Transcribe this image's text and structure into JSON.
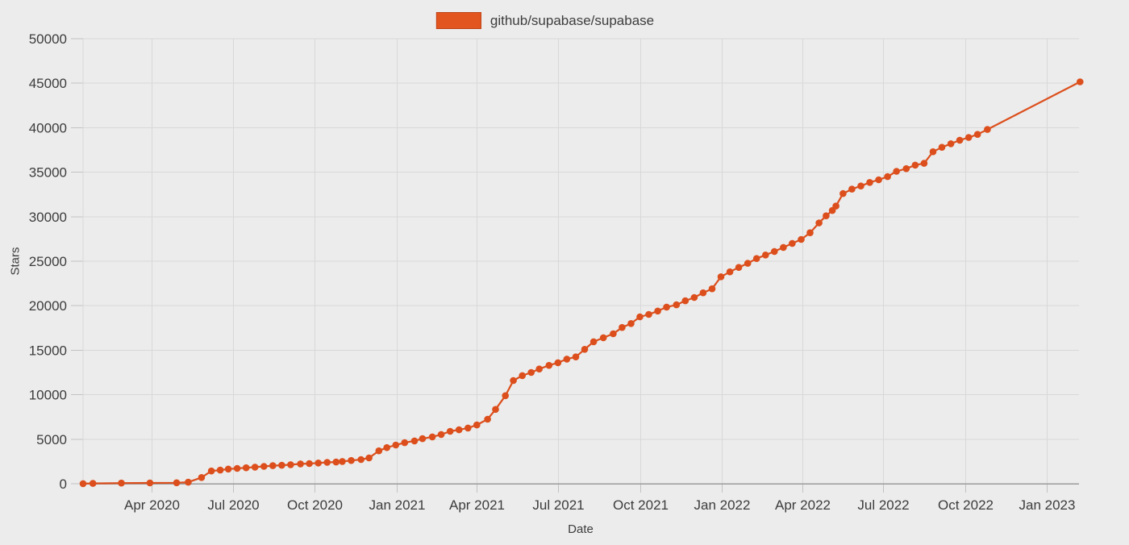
{
  "figure": {
    "background_color": "#ececec",
    "grid_color": "#d8d8d8",
    "tick_mark_color": "#c2c2c2",
    "zero_axis_color": "#9b9b9b",
    "tick_text_color": "#3c3c3c"
  },
  "chart_data": {
    "type": "line",
    "title": "",
    "xlabel": "Date",
    "ylabel": "Stars",
    "ylim": [
      0,
      50000
    ],
    "ytick_step": 5000,
    "ytick_labels": [
      "0",
      "5000",
      "10000",
      "15000",
      "20000",
      "25000",
      "30000",
      "35000",
      "40000",
      "45000",
      "50000"
    ],
    "x_start": "2020-01-15",
    "x_end": "2023-02-07",
    "grid": true,
    "legend_position": "top-center",
    "markers": true,
    "xticks": [
      {
        "label": "Apr 2020",
        "date": "2020-04-01"
      },
      {
        "label": "Jul 2020",
        "date": "2020-07-01"
      },
      {
        "label": "Oct 2020",
        "date": "2020-10-01"
      },
      {
        "label": "Jan 2021",
        "date": "2021-01-01"
      },
      {
        "label": "Apr 2021",
        "date": "2021-04-01"
      },
      {
        "label": "Jul 2021",
        "date": "2021-07-01"
      },
      {
        "label": "Oct 2021",
        "date": "2021-10-01"
      },
      {
        "label": "Jan 2022",
        "date": "2022-01-01"
      },
      {
        "label": "Apr 2022",
        "date": "2022-04-01"
      },
      {
        "label": "Jul 2022",
        "date": "2022-07-01"
      },
      {
        "label": "Oct 2022",
        "date": "2022-10-01"
      },
      {
        "label": "Jan 2023",
        "date": "2023-01-01"
      }
    ],
    "series": [
      {
        "name": "github/supabase/supabase",
        "color": "#dc4f1d",
        "legend_swatch_color": "#e2551e",
        "legend_swatch_border": "#bf4318",
        "points": [
          [
            "2020-01-15",
            10
          ],
          [
            "2020-01-26",
            40
          ],
          [
            "2020-02-27",
            70
          ],
          [
            "2020-03-30",
            90
          ],
          [
            "2020-04-29",
            110
          ],
          [
            "2020-05-12",
            170
          ],
          [
            "2020-05-27",
            700
          ],
          [
            "2020-06-07",
            1430
          ],
          [
            "2020-06-17",
            1530
          ],
          [
            "2020-06-26",
            1650
          ],
          [
            "2020-07-06",
            1720
          ],
          [
            "2020-07-16",
            1790
          ],
          [
            "2020-07-26",
            1870
          ],
          [
            "2020-08-05",
            1950
          ],
          [
            "2020-08-15",
            2030
          ],
          [
            "2020-08-25",
            2070
          ],
          [
            "2020-09-04",
            2140
          ],
          [
            "2020-09-15",
            2230
          ],
          [
            "2020-09-25",
            2260
          ],
          [
            "2020-10-05",
            2330
          ],
          [
            "2020-10-15",
            2400
          ],
          [
            "2020-10-25",
            2440
          ],
          [
            "2020-11-01",
            2500
          ],
          [
            "2020-11-11",
            2610
          ],
          [
            "2020-11-22",
            2720
          ],
          [
            "2020-12-01",
            2900
          ],
          [
            "2020-12-12",
            3700
          ],
          [
            "2020-12-21",
            4060
          ],
          [
            "2020-12-31",
            4350
          ],
          [
            "2021-01-10",
            4610
          ],
          [
            "2021-01-21",
            4810
          ],
          [
            "2021-01-30",
            5060
          ],
          [
            "2021-02-10",
            5260
          ],
          [
            "2021-02-20",
            5530
          ],
          [
            "2021-03-02",
            5890
          ],
          [
            "2021-03-12",
            6060
          ],
          [
            "2021-03-22",
            6260
          ],
          [
            "2021-04-01",
            6600
          ],
          [
            "2021-04-13",
            7250
          ],
          [
            "2021-04-22",
            8350
          ],
          [
            "2021-05-03",
            9890
          ],
          [
            "2021-05-12",
            11590
          ],
          [
            "2021-05-22",
            12150
          ],
          [
            "2021-06-01",
            12500
          ],
          [
            "2021-06-10",
            12890
          ],
          [
            "2021-06-21",
            13300
          ],
          [
            "2021-07-01",
            13600
          ],
          [
            "2021-07-11",
            14000
          ],
          [
            "2021-07-21",
            14250
          ],
          [
            "2021-07-31",
            15100
          ],
          [
            "2021-08-10",
            15950
          ],
          [
            "2021-08-21",
            16400
          ],
          [
            "2021-09-01",
            16850
          ],
          [
            "2021-09-11",
            17550
          ],
          [
            "2021-09-21",
            18000
          ],
          [
            "2021-10-01",
            18750
          ],
          [
            "2021-10-11",
            19020
          ],
          [
            "2021-10-21",
            19400
          ],
          [
            "2021-10-31",
            19850
          ],
          [
            "2021-11-11",
            20100
          ],
          [
            "2021-11-21",
            20550
          ],
          [
            "2021-12-01",
            20920
          ],
          [
            "2021-12-11",
            21450
          ],
          [
            "2021-12-21",
            21900
          ],
          [
            "2021-12-31",
            23250
          ],
          [
            "2022-01-10",
            23800
          ],
          [
            "2022-01-20",
            24300
          ],
          [
            "2022-01-30",
            24760
          ],
          [
            "2022-02-09",
            25300
          ],
          [
            "2022-02-19",
            25700
          ],
          [
            "2022-03-01",
            26100
          ],
          [
            "2022-03-11",
            26550
          ],
          [
            "2022-03-21",
            27000
          ],
          [
            "2022-03-31",
            27450
          ],
          [
            "2022-04-10",
            28200
          ],
          [
            "2022-04-20",
            29300
          ],
          [
            "2022-04-28",
            30100
          ],
          [
            "2022-05-05",
            30700
          ],
          [
            "2022-05-09",
            31200
          ],
          [
            "2022-05-17",
            32600
          ],
          [
            "2022-05-27",
            33100
          ],
          [
            "2022-06-06",
            33450
          ],
          [
            "2022-06-16",
            33850
          ],
          [
            "2022-06-26",
            34150
          ],
          [
            "2022-07-06",
            34500
          ],
          [
            "2022-07-16",
            35100
          ],
          [
            "2022-07-27",
            35400
          ],
          [
            "2022-08-06",
            35800
          ],
          [
            "2022-08-16",
            36000
          ],
          [
            "2022-08-26",
            37300
          ],
          [
            "2022-09-05",
            37800
          ],
          [
            "2022-09-15",
            38200
          ],
          [
            "2022-09-25",
            38600
          ],
          [
            "2022-10-05",
            38900
          ],
          [
            "2022-10-15",
            39250
          ],
          [
            "2022-10-26",
            39800
          ],
          [
            "2023-02-07",
            45150
          ]
        ]
      }
    ]
  }
}
